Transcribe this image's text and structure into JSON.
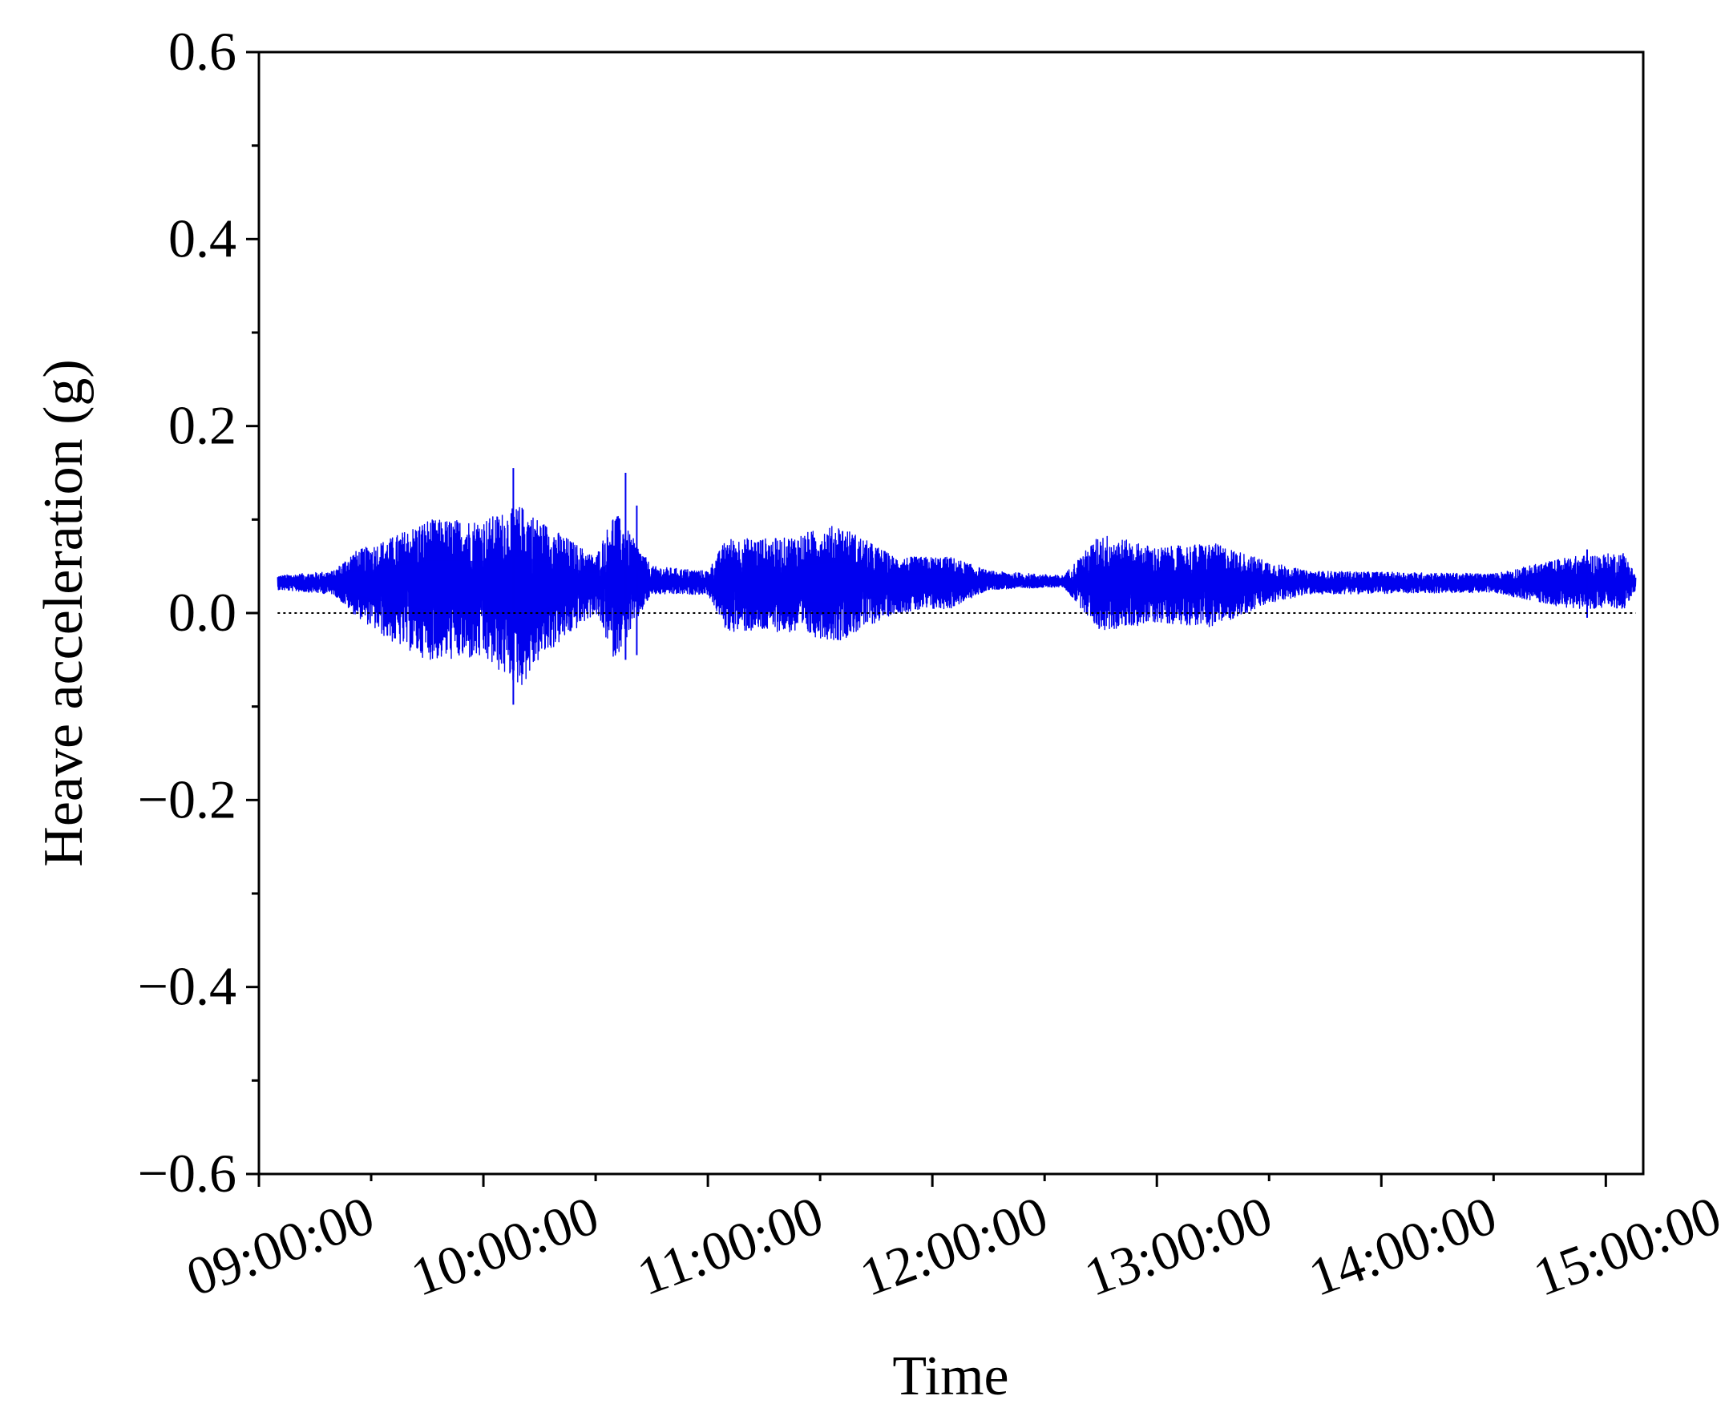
{
  "chart_data": {
    "type": "line",
    "title": "",
    "xlabel": "Time",
    "ylabel": "Heave acceleration (g)",
    "ylim": [
      -0.6,
      0.6
    ],
    "xlim": [
      "09:00:00",
      "15:10:00"
    ],
    "y_ticks": [
      "0.6",
      "0.4",
      "0.2",
      "0.0",
      "−0.2",
      "−0.4",
      "−0.6"
    ],
    "y_tick_values": [
      0.6,
      0.4,
      0.2,
      0.0,
      -0.2,
      -0.4,
      -0.6
    ],
    "x_ticks": [
      "09:00:00",
      "10:00:00",
      "11:00:00",
      "12:00:00",
      "13:00:00",
      "14:00:00",
      "15:00:00"
    ],
    "reference_line": {
      "y": 0.0,
      "style": "dotted",
      "color": "#000000"
    },
    "grid": false,
    "series": [
      {
        "color": "#0000ee",
        "mean": 0.032,
        "x_start": "09:05:00",
        "x_end": "15:08:00",
        "envelope": [
          {
            "t": "09:05:00",
            "max": 0.04,
            "min": 0.025
          },
          {
            "t": "09:20:00",
            "max": 0.045,
            "min": 0.02
          },
          {
            "t": "09:25:00",
            "max": 0.065,
            "min": 0.0
          },
          {
            "t": "09:35:00",
            "max": 0.08,
            "min": -0.03
          },
          {
            "t": "09:45:00",
            "max": 0.1,
            "min": -0.05
          },
          {
            "t": "10:00:00",
            "max": 0.1,
            "min": -0.05
          },
          {
            "t": "10:10:00",
            "max": 0.115,
            "min": -0.08
          },
          {
            "t": "10:15:00",
            "max": 0.1,
            "min": -0.05
          },
          {
            "t": "10:30:00",
            "max": 0.06,
            "min": 0.0
          },
          {
            "t": "10:35:00",
            "max": 0.11,
            "min": -0.05
          },
          {
            "t": "10:45:00",
            "max": 0.05,
            "min": 0.02
          },
          {
            "t": "11:00:00",
            "max": 0.045,
            "min": 0.02
          },
          {
            "t": "11:05:00",
            "max": 0.08,
            "min": -0.02
          },
          {
            "t": "11:20:00",
            "max": 0.08,
            "min": -0.02
          },
          {
            "t": "11:35:00",
            "max": 0.095,
            "min": -0.03
          },
          {
            "t": "11:50:00",
            "max": 0.06,
            "min": 0.0
          },
          {
            "t": "12:05:00",
            "max": 0.06,
            "min": 0.005
          },
          {
            "t": "12:15:00",
            "max": 0.045,
            "min": 0.025
          },
          {
            "t": "12:35:00",
            "max": 0.04,
            "min": 0.028
          },
          {
            "t": "12:45:00",
            "max": 0.085,
            "min": -0.02
          },
          {
            "t": "13:00:00",
            "max": 0.07,
            "min": -0.01
          },
          {
            "t": "13:15:00",
            "max": 0.075,
            "min": -0.015
          },
          {
            "t": "13:30:00",
            "max": 0.055,
            "min": 0.01
          },
          {
            "t": "13:40:00",
            "max": 0.045,
            "min": 0.02
          },
          {
            "t": "14:30:00",
            "max": 0.042,
            "min": 0.022
          },
          {
            "t": "14:50:00",
            "max": 0.06,
            "min": 0.005
          },
          {
            "t": "15:05:00",
            "max": 0.065,
            "min": 0.005
          },
          {
            "t": "15:08:00",
            "max": 0.04,
            "min": 0.025
          }
        ],
        "spikes": [
          {
            "t": "10:08:00",
            "max": 0.155,
            "min": -0.098
          },
          {
            "t": "10:38:00",
            "max": 0.15,
            "min": -0.05
          },
          {
            "t": "10:41:00",
            "max": 0.115,
            "min": -0.045
          },
          {
            "t": "14:55:00",
            "max": 0.068,
            "min": -0.005
          }
        ]
      }
    ]
  }
}
